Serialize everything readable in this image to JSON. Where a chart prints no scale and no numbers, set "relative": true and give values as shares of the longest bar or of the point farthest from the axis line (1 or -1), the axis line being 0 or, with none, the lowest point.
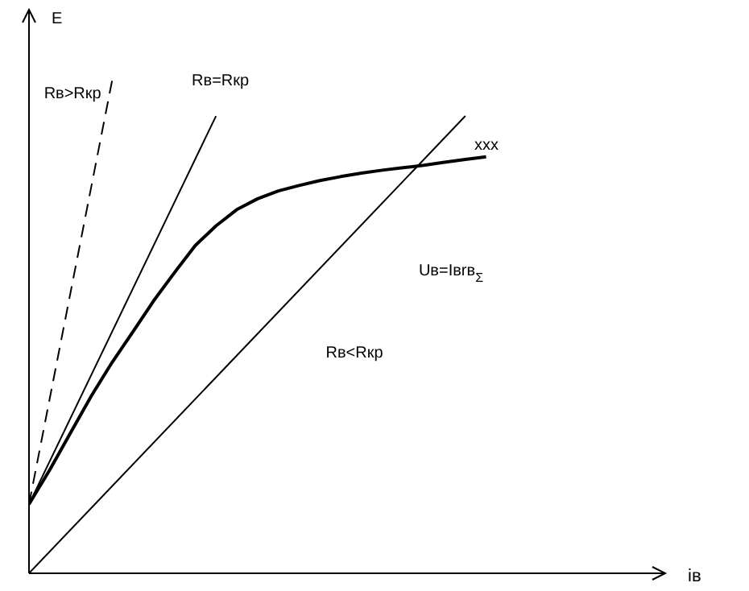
{
  "chart_data": {
    "type": "line",
    "relative": true,
    "xlabel": "iв",
    "ylabel": "E",
    "legend": false,
    "grid": false,
    "marker": "none",
    "categories": [
      null,
      null,
      null,
      null,
      null,
      null,
      null,
      null,
      null,
      null,
      null,
      null,
      null,
      null,
      null,
      null,
      null,
      null,
      null,
      null,
      null,
      null,
      null,
      null,
      null,
      null,
      null,
      null,
      null,
      null,
      null
    ],
    "series": [
      {
        "color": "#000000",
        "line_style": "dashed",
        "values": [
          0.14,
          null,
          null,
          null,
          1,
          null,
          null,
          null,
          null,
          null,
          null,
          null,
          null,
          null,
          null,
          null,
          null,
          null,
          null,
          null,
          null,
          null,
          null,
          null,
          null,
          null,
          null,
          null,
          null,
          null,
          null
        ]
      },
      {
        "color": "#000000",
        "line_style": "solid",
        "values": [
          0.14,
          null,
          null,
          null,
          null,
          null,
          null,
          null,
          null,
          0.928,
          null,
          null,
          null,
          null,
          null,
          null,
          null,
          null,
          null,
          null,
          null,
          null,
          null,
          null,
          null,
          null,
          null,
          null,
          null,
          null,
          null
        ]
      },
      {
        "color": "#000000",
        "line_style": "solid",
        "values": [
          0.14,
          0.21,
          0.285,
          0.36,
          0.428,
          0.49,
          0.553,
          0.61,
          0.665,
          0.705,
          0.738,
          0.76,
          0.776,
          0.787,
          0.797,
          0.805,
          0.812,
          0.818,
          0.823,
          0.828,
          0.834,
          0.84,
          0.845,
          null,
          null,
          null,
          null,
          null,
          null,
          null,
          null
        ]
      },
      {
        "color": "#000000",
        "line_style": "solid",
        "values": [
          0,
          null,
          null,
          null,
          null,
          null,
          null,
          null,
          null,
          null,
          null,
          null,
          null,
          null,
          null,
          null,
          null,
          null,
          null,
          null,
          null,
          0.928,
          null,
          null,
          null,
          null,
          null,
          null,
          null,
          null,
          null
        ]
      }
    ],
    "annotations": [
      "Rв>Rкр",
      "Rв=Rкр",
      "xxx",
      "Uв=Iвrв$_{Σ}$",
      "Rв<Rкр"
    ]
  }
}
